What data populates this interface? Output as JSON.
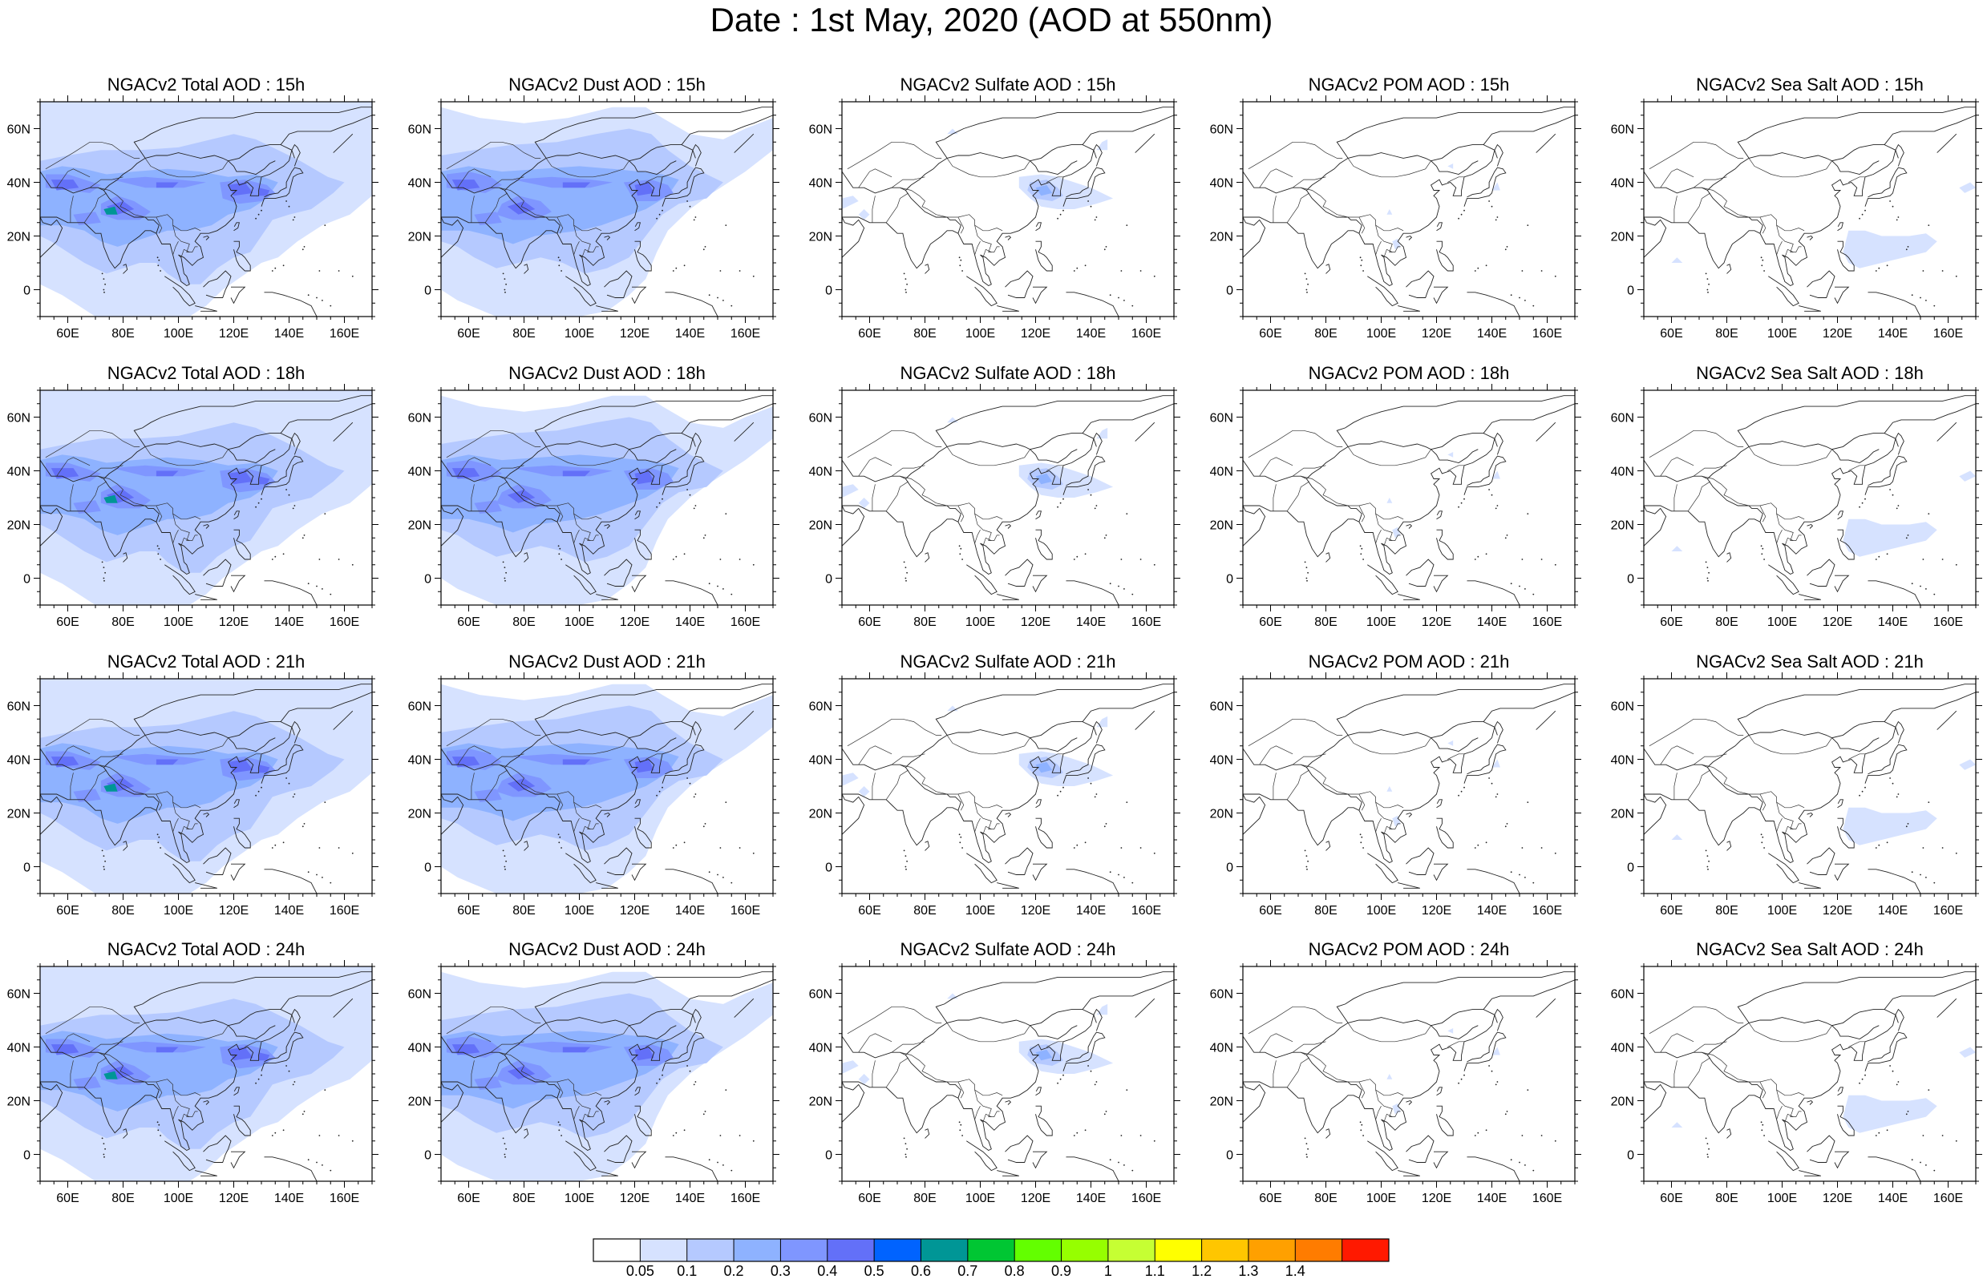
{
  "title": "Date : 1st May, 2020 (AOD at 550nm)",
  "panels": [
    {
      "title": "NGACv2 Total AOD : 15h",
      "species": "total"
    },
    {
      "title": "NGACv2 Dust AOD : 15h",
      "species": "dust"
    },
    {
      "title": "NGACv2 Sulfate AOD : 15h",
      "species": "sulfate"
    },
    {
      "title": "NGACv2 POM AOD : 15h",
      "species": "pom"
    },
    {
      "title": "NGACv2 Sea Salt AOD : 15h",
      "species": "seasalt"
    },
    {
      "title": "NGACv2 Total AOD : 18h",
      "species": "total"
    },
    {
      "title": "NGACv2 Dust AOD : 18h",
      "species": "dust"
    },
    {
      "title": "NGACv2 Sulfate AOD : 18h",
      "species": "sulfate"
    },
    {
      "title": "NGACv2 POM AOD : 18h",
      "species": "pom"
    },
    {
      "title": "NGACv2 Sea Salt AOD : 18h",
      "species": "seasalt"
    },
    {
      "title": "NGACv2 Total AOD : 21h",
      "species": "total"
    },
    {
      "title": "NGACv2 Dust AOD : 21h",
      "species": "dust"
    },
    {
      "title": "NGACv2 Sulfate AOD : 21h",
      "species": "sulfate"
    },
    {
      "title": "NGACv2 POM AOD : 21h",
      "species": "pom"
    },
    {
      "title": "NGACv2 Sea Salt AOD : 21h",
      "species": "seasalt"
    },
    {
      "title": "NGACv2 Total AOD : 24h",
      "species": "total"
    },
    {
      "title": "NGACv2 Dust AOD : 24h",
      "species": "dust"
    },
    {
      "title": "NGACv2 Sulfate AOD : 24h",
      "species": "sulfate"
    },
    {
      "title": "NGACv2 POM AOD : 24h",
      "species": "pom"
    },
    {
      "title": "NGACv2 Sea Salt  AOD : 24h",
      "species": "seasalt"
    }
  ],
  "axes": {
    "lon_range": [
      50,
      170
    ],
    "lat_range": [
      -10,
      70
    ],
    "lon_ticks": [
      60,
      80,
      100,
      120,
      140,
      160
    ],
    "lon_tick_labels": [
      "60E",
      "80E",
      "100E",
      "120E",
      "140E",
      "160E"
    ],
    "lat_ticks": [
      0,
      20,
      40,
      60
    ],
    "lat_tick_labels": [
      "0",
      "20N",
      "40N",
      "60N"
    ]
  },
  "colorbar": {
    "labels": [
      "0.05",
      "0.1",
      "0.2",
      "0.3",
      "0.4",
      "0.5",
      "0.6",
      "0.7",
      "0.8",
      "0.9",
      "1",
      "1.1",
      "1.2",
      "1.3",
      "1.4"
    ],
    "colors": [
      "#ffffff",
      "#d6e2ff",
      "#b5c9ff",
      "#8eb2ff",
      "#7f96ff",
      "#6370f8",
      "#0063ff",
      "#009696",
      "#00c633",
      "#63ff00",
      "#96ff00",
      "#c6ff33",
      "#ffff00",
      "#ffc600",
      "#ffa000",
      "#ff7c00",
      "#ff1900"
    ]
  }
}
